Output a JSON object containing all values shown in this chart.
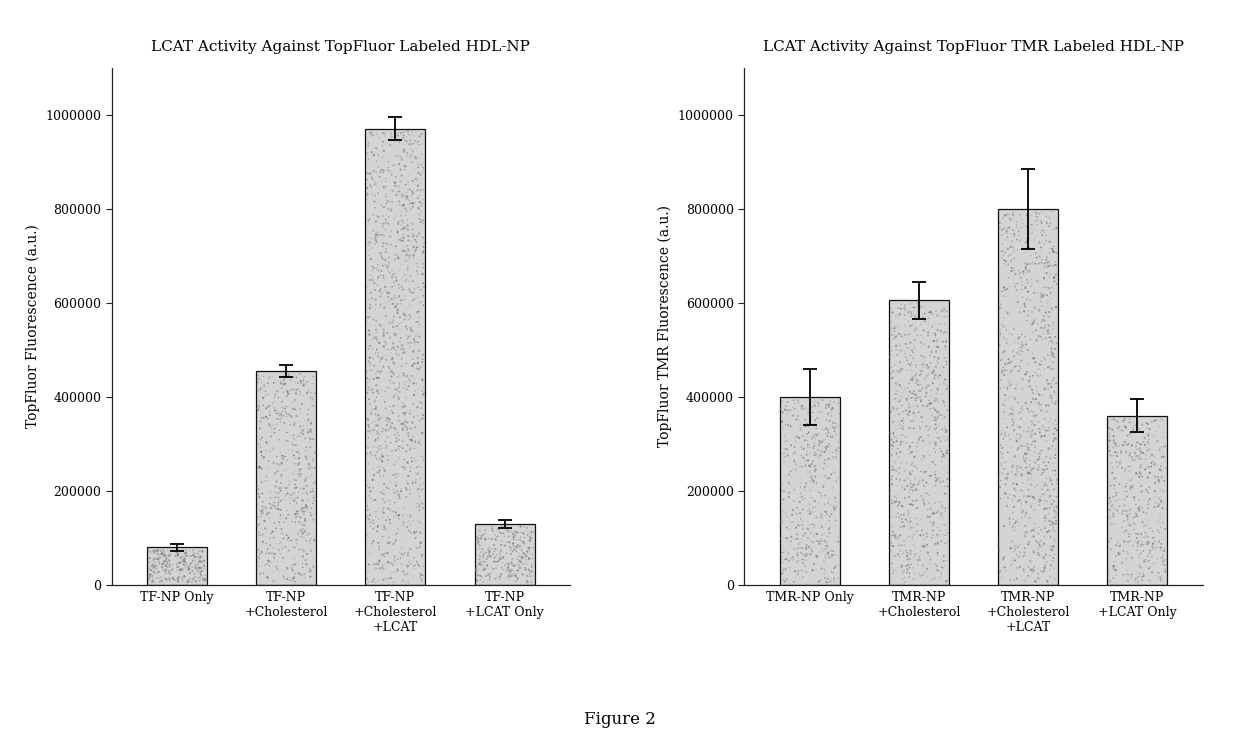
{
  "left_chart": {
    "title": "LCAT Activity Against TopFluor Labeled HDL-NP",
    "ylabel": "TopFluor Fluorescence (a.u.)",
    "categories": [
      "TF-NP Only",
      "TF-NP\n+Cholesterol",
      "TF-NP\n+Cholesterol\n+LCAT",
      "TF-NP\n+LCAT Only"
    ],
    "values": [
      80000,
      455000,
      970000,
      130000
    ],
    "errors": [
      8000,
      12000,
      25000,
      8000
    ],
    "ylim": [
      0,
      1100000
    ],
    "yticks": [
      0,
      200000,
      400000,
      600000,
      800000,
      1000000
    ],
    "bar_color": "#c8c8c8",
    "bar_edgecolor": "#111111",
    "error_color": "black"
  },
  "right_chart": {
    "title": "LCAT Activity Against TopFluor TMR Labeled HDL-NP",
    "ylabel": "TopFluor TMR Fluorescence (a.u.)",
    "categories": [
      "TMR-NP Only",
      "TMR-NP\n+Cholesterol",
      "TMR-NP\n+Cholesterol\n+LCAT",
      "TMR-NP\n+LCAT Only"
    ],
    "values": [
      400000,
      605000,
      800000,
      360000
    ],
    "errors": [
      60000,
      40000,
      85000,
      35000
    ],
    "ylim": [
      0,
      1100000
    ],
    "yticks": [
      0,
      200000,
      400000,
      600000,
      800000,
      1000000
    ],
    "bar_color": "#c8c8c8",
    "bar_edgecolor": "#111111",
    "error_color": "black"
  },
  "figure_label": "Figure 2",
  "background_color": "#ffffff",
  "title_fontsize": 11,
  "label_fontsize": 10,
  "tick_fontsize": 9,
  "figure_label_fontsize": 12
}
